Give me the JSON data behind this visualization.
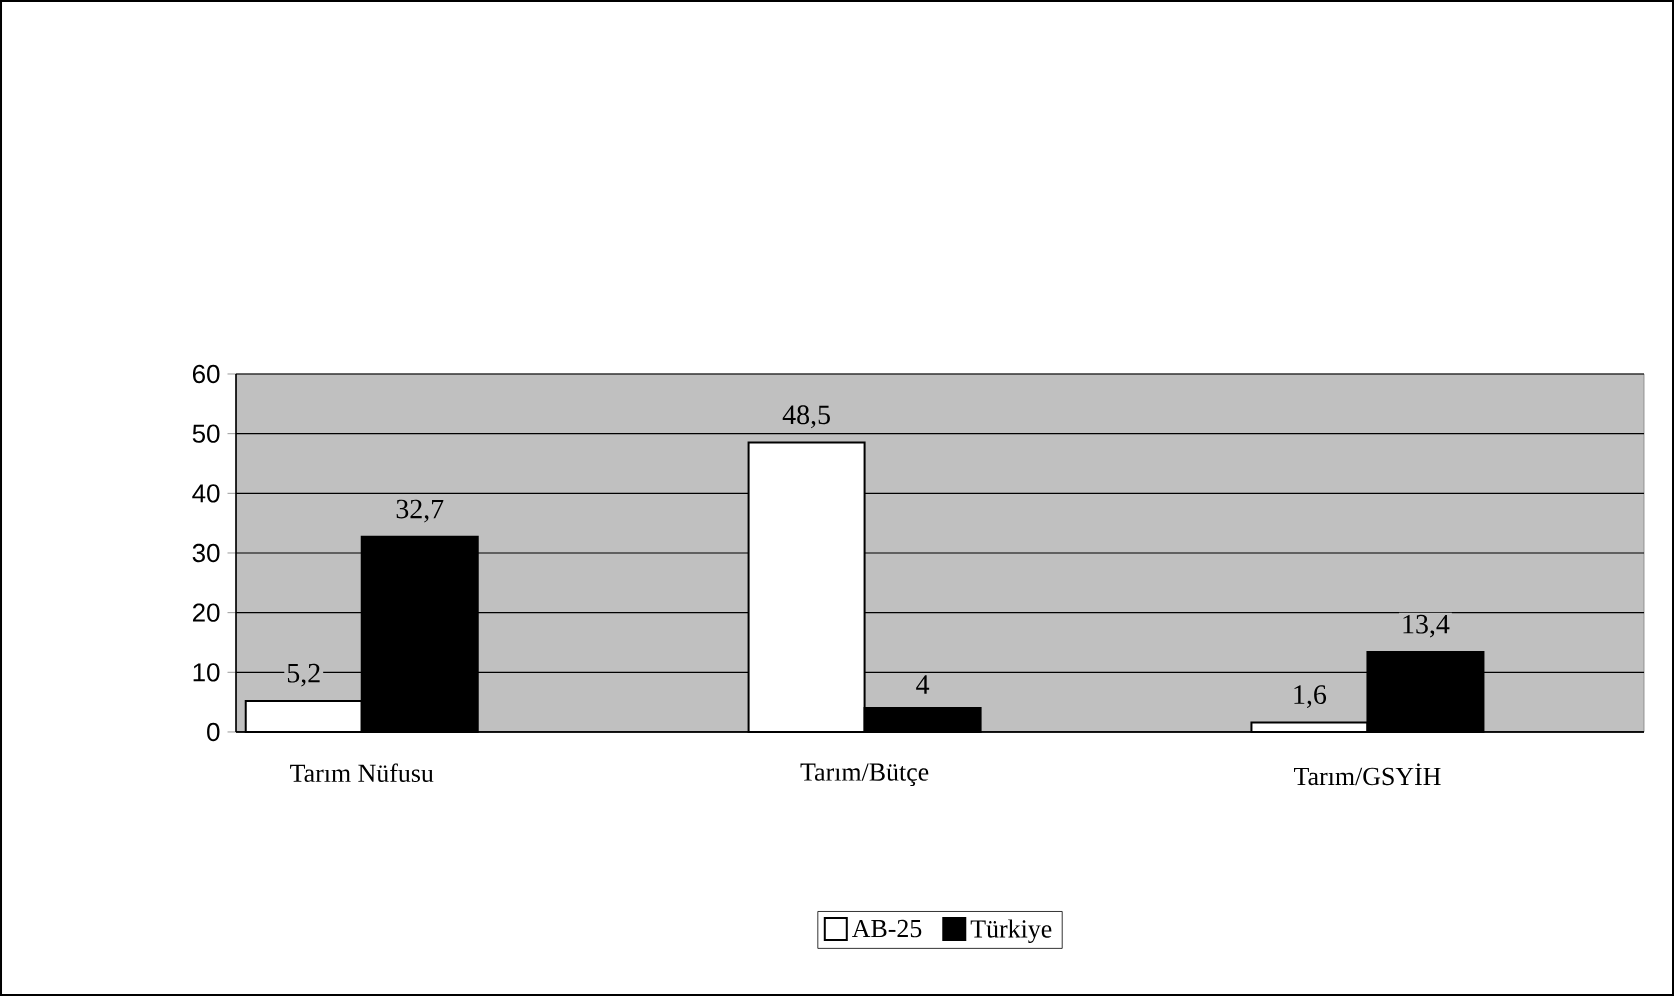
{
  "chart_data": {
    "type": "bar",
    "categories": [
      "Tarım Nüfusu",
      "Tarım/Bütçe",
      "Tarım/GSYİH"
    ],
    "series": [
      {
        "name": "AB-25",
        "color": "#ffffff",
        "values": [
          5.2,
          48.5,
          1.6
        ],
        "value_labels": [
          "5,2",
          "48,5",
          "1,6"
        ]
      },
      {
        "name": "Türkiye",
        "color": "#000000",
        "values": [
          32.7,
          4,
          13.4
        ],
        "value_labels": [
          "32,7",
          "4",
          "13,4"
        ]
      }
    ],
    "ylim": [
      0,
      60
    ],
    "yticks": [
      0,
      10,
      20,
      30,
      40,
      50,
      60
    ],
    "grid": "y",
    "legend": "bottom"
  }
}
